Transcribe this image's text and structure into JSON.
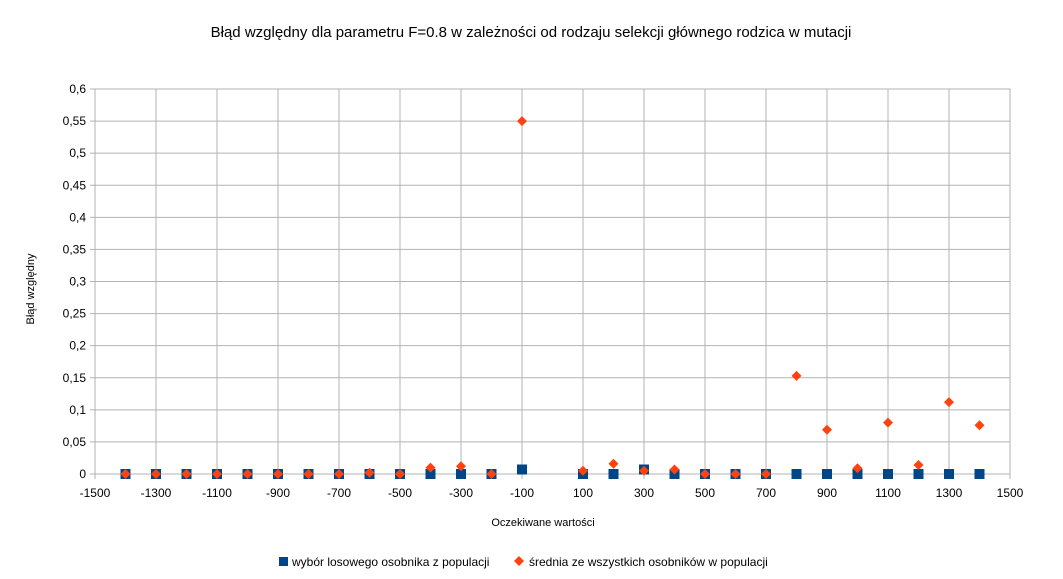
{
  "chart_data": {
    "type": "scatter",
    "title": "Błąd względny dla parametru F=0.8  w zależności od rodzaju selekcji głównego rodzica w mutacji",
    "xlabel": "Oczekiwane wartości",
    "ylabel": "Błąd względny",
    "xlim": [
      -1500,
      1500
    ],
    "ylim": [
      0,
      0.6
    ],
    "x_ticks": [
      -1500,
      -1300,
      -1100,
      -900,
      -700,
      -500,
      -300,
      -100,
      100,
      300,
      500,
      700,
      900,
      1100,
      1300,
      1500
    ],
    "x_tick_labels": [
      "-1500",
      "-1300",
      "-1100",
      "-900",
      "-700",
      "-500",
      "-300",
      "-100",
      "100",
      "300",
      "500",
      "700",
      "900",
      "1100",
      "1300",
      "1500"
    ],
    "y_ticks": [
      0,
      0.05,
      0.1,
      0.15,
      0.2,
      0.25,
      0.3,
      0.35,
      0.4,
      0.45,
      0.5,
      0.55,
      0.6
    ],
    "y_tick_labels": [
      "0",
      "0,05",
      "0,1",
      "0,15",
      "0,2",
      "0,25",
      "0,3",
      "0,35",
      "0,4",
      "0,45",
      "0,5",
      "0,55",
      "0,6"
    ],
    "grid": true,
    "legend_position": "bottom",
    "series": [
      {
        "name": "wybór losowego osobnika z populacji",
        "marker": "square",
        "color": "#004586",
        "x": [
          -1400,
          -1300,
          -1200,
          -1100,
          -1000,
          -900,
          -800,
          -700,
          -600,
          -500,
          -400,
          -300,
          -200,
          -100,
          100,
          200,
          300,
          400,
          500,
          600,
          700,
          800,
          900,
          1000,
          1100,
          1200,
          1300,
          1400
        ],
        "y": [
          0,
          0,
          0,
          0,
          0,
          0,
          0,
          0,
          0,
          0,
          0,
          0,
          0,
          0.007,
          0,
          0,
          0.007,
          0,
          0,
          0,
          0,
          0,
          0,
          0,
          0,
          0,
          0,
          0
        ]
      },
      {
        "name": "średnia ze wszystkich osobników w populacji",
        "marker": "diamond",
        "color": "#ff420e",
        "x": [
          -1400,
          -1300,
          -1200,
          -1100,
          -1000,
          -900,
          -800,
          -700,
          -600,
          -500,
          -400,
          -300,
          -200,
          -100,
          100,
          200,
          300,
          400,
          500,
          600,
          700,
          800,
          900,
          1000,
          1100,
          1200,
          1300,
          1400
        ],
        "y": [
          0,
          0,
          0,
          0,
          0,
          0,
          0,
          0,
          0.002,
          0,
          0.01,
          0.012,
          0,
          0.55,
          0.005,
          0.016,
          0.005,
          0.007,
          0,
          0,
          0,
          0.153,
          0.069,
          0.009,
          0.08,
          0.014,
          0.112,
          0.076
        ]
      }
    ]
  }
}
